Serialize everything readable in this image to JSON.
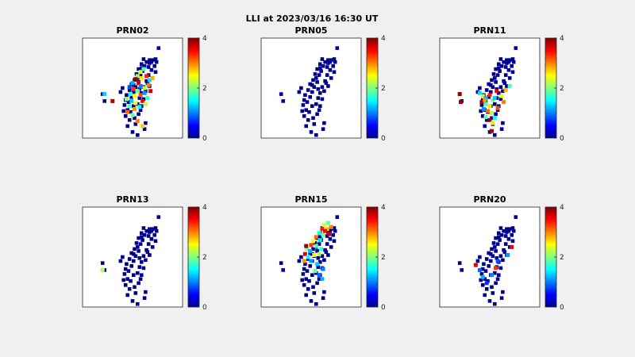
{
  "chart_data": {
    "type": "scatter",
    "title": "LLI at 2023/03/16 16:30 UT",
    "colorbar": {
      "colormap": "jet",
      "clim": [
        0,
        4
      ],
      "ticks": [
        "0",
        "2",
        "4"
      ]
    },
    "station_marker_color": "#00008f",
    "stations": [
      [
        0.76,
        0.1
      ],
      [
        0.73,
        0.21
      ],
      [
        0.67,
        0.22
      ],
      [
        0.61,
        0.21
      ],
      [
        0.64,
        0.24
      ],
      [
        0.69,
        0.24
      ],
      [
        0.74,
        0.24
      ],
      [
        0.59,
        0.26
      ],
      [
        0.62,
        0.28
      ],
      [
        0.72,
        0.28
      ],
      [
        0.66,
        0.29
      ],
      [
        0.69,
        0.32
      ],
      [
        0.56,
        0.31
      ],
      [
        0.6,
        0.33
      ],
      [
        0.54,
        0.36
      ],
      [
        0.58,
        0.37
      ],
      [
        0.66,
        0.37
      ],
      [
        0.73,
        0.34
      ],
      [
        0.7,
        0.4
      ],
      [
        0.64,
        0.43
      ],
      [
        0.52,
        0.42
      ],
      [
        0.56,
        0.44
      ],
      [
        0.49,
        0.46
      ],
      [
        0.53,
        0.49
      ],
      [
        0.61,
        0.49
      ],
      [
        0.67,
        0.48
      ],
      [
        0.47,
        0.52
      ],
      [
        0.51,
        0.54
      ],
      [
        0.59,
        0.55
      ],
      [
        0.63,
        0.53
      ],
      [
        0.44,
        0.57
      ],
      [
        0.49,
        0.59
      ],
      [
        0.57,
        0.6
      ],
      [
        0.61,
        0.61
      ],
      [
        0.43,
        0.62
      ],
      [
        0.46,
        0.64
      ],
      [
        0.55,
        0.66
      ],
      [
        0.42,
        0.67
      ],
      [
        0.51,
        0.68
      ],
      [
        0.59,
        0.68
      ],
      [
        0.45,
        0.72
      ],
      [
        0.48,
        0.74
      ],
      [
        0.56,
        0.76
      ],
      [
        0.43,
        0.78
      ],
      [
        0.47,
        0.82
      ],
      [
        0.53,
        0.86
      ],
      [
        0.45,
        0.88
      ],
      [
        0.63,
        0.85
      ],
      [
        0.62,
        0.91
      ],
      [
        0.5,
        0.94
      ],
      [
        0.55,
        0.97
      ],
      [
        0.4,
        0.5
      ],
      [
        0.38,
        0.54
      ],
      [
        0.2,
        0.56
      ],
      [
        0.22,
        0.63
      ],
      [
        0.67,
        0.25
      ],
      [
        0.59,
        0.3
      ],
      [
        0.7,
        0.22
      ],
      [
        0.55,
        0.4
      ],
      [
        0.51,
        0.47
      ],
      [
        0.57,
        0.51
      ],
      [
        0.65,
        0.45
      ],
      [
        0.41,
        0.73
      ],
      [
        0.52,
        0.8
      ],
      [
        0.58,
        0.72
      ]
    ],
    "panels": [
      {
        "name": "PRN02",
        "points": [
          [
            0.55,
            0.38,
            2.1
          ],
          [
            0.58,
            0.34,
            2.4
          ],
          [
            0.61,
            0.31,
            1.8
          ],
          [
            0.53,
            0.41,
            3.9
          ],
          [
            0.5,
            0.45,
            1.2
          ],
          [
            0.56,
            0.45,
            3.6
          ],
          [
            0.59,
            0.4,
            2.6
          ],
          [
            0.64,
            0.38,
            3.4
          ],
          [
            0.67,
            0.42,
            1.4
          ],
          [
            0.7,
            0.4,
            2.8
          ],
          [
            0.47,
            0.49,
            0.8
          ],
          [
            0.51,
            0.51,
            3.3
          ],
          [
            0.55,
            0.53,
            1.9
          ],
          [
            0.62,
            0.5,
            2.2
          ],
          [
            0.66,
            0.47,
            3.0
          ],
          [
            0.48,
            0.56,
            1.6
          ],
          [
            0.52,
            0.58,
            2.5
          ],
          [
            0.58,
            0.57,
            3.2
          ],
          [
            0.62,
            0.55,
            1.1
          ],
          [
            0.65,
            0.6,
            1.7
          ],
          [
            0.44,
            0.61,
            2.0
          ],
          [
            0.49,
            0.63,
            1.3
          ],
          [
            0.53,
            0.65,
            2.4
          ],
          [
            0.6,
            0.63,
            3.5
          ],
          [
            0.47,
            0.68,
            1.8
          ],
          [
            0.52,
            0.71,
            2.9
          ],
          [
            0.57,
            0.69,
            1.5
          ],
          [
            0.45,
            0.74,
            3.1
          ],
          [
            0.5,
            0.77,
            1.9
          ],
          [
            0.55,
            0.83,
            3.0
          ],
          [
            0.6,
            0.88,
            2.7
          ],
          [
            0.22,
            0.56,
            1.3
          ],
          [
            0.3,
            0.63,
            3.8
          ],
          [
            0.63,
            0.66,
            2.2
          ],
          [
            0.58,
            0.48,
            1.0
          ],
          [
            0.68,
            0.53,
            3.7
          ]
        ]
      },
      {
        "name": "PRN05",
        "points": []
      },
      {
        "name": "PRN11",
        "points": [
          [
            0.4,
            0.55,
            1.4
          ],
          [
            0.43,
            0.58,
            2.3
          ],
          [
            0.46,
            0.6,
            1.2
          ],
          [
            0.5,
            0.57,
            3.4
          ],
          [
            0.53,
            0.62,
            2.0
          ],
          [
            0.42,
            0.64,
            3.8
          ],
          [
            0.46,
            0.66,
            1.7
          ],
          [
            0.5,
            0.68,
            2.6
          ],
          [
            0.44,
            0.71,
            1.1
          ],
          [
            0.48,
            0.73,
            3.1
          ],
          [
            0.52,
            0.75,
            2.2
          ],
          [
            0.46,
            0.79,
            1.9
          ],
          [
            0.5,
            0.82,
            3.9
          ],
          [
            0.55,
            0.8,
            1.5
          ],
          [
            0.53,
            0.85,
            2.6
          ],
          [
            0.58,
            0.7,
            3.2
          ],
          [
            0.62,
            0.58,
            2.4
          ],
          [
            0.66,
            0.52,
            2.8
          ],
          [
            0.7,
            0.48,
            1.8
          ],
          [
            0.57,
            0.53,
            3.6
          ],
          [
            0.55,
            0.6,
            1.3
          ],
          [
            0.2,
            0.56,
            3.9
          ],
          [
            0.21,
            0.64,
            3.9
          ],
          [
            0.45,
            0.62,
            2.9
          ],
          [
            0.52,
            0.93,
            3.8
          ],
          [
            0.64,
            0.64,
            3.0
          ]
        ]
      },
      {
        "name": "PRN13",
        "points": [
          [
            0.2,
            0.63,
            2.2
          ]
        ]
      },
      {
        "name": "PRN15",
        "points": [
          [
            0.63,
            0.18,
            2.3
          ],
          [
            0.67,
            0.16,
            1.9
          ],
          [
            0.61,
            0.22,
            3.4
          ],
          [
            0.66,
            0.22,
            2.7
          ],
          [
            0.7,
            0.2,
            3.0
          ],
          [
            0.58,
            0.26,
            1.6
          ],
          [
            0.62,
            0.28,
            2.0
          ],
          [
            0.68,
            0.27,
            3.7
          ],
          [
            0.55,
            0.3,
            3.1
          ],
          [
            0.59,
            0.33,
            1.4
          ],
          [
            0.52,
            0.34,
            2.5
          ],
          [
            0.5,
            0.38,
            3.3
          ],
          [
            0.55,
            0.39,
            1.8
          ],
          [
            0.46,
            0.42,
            2.0
          ],
          [
            0.49,
            0.44,
            1.2
          ],
          [
            0.44,
            0.47,
            3.6
          ],
          [
            0.47,
            0.5,
            1.5
          ],
          [
            0.53,
            0.48,
            2.4
          ],
          [
            0.43,
            0.54,
            2.9
          ],
          [
            0.5,
            0.54,
            1.1
          ],
          [
            0.58,
            0.47,
            2.2
          ],
          [
            0.6,
            0.42,
            1.7
          ],
          [
            0.56,
            0.57,
            1.3
          ],
          [
            0.62,
            0.62,
            1.0
          ],
          [
            0.58,
            0.68,
            0.9
          ],
          [
            0.61,
            0.72,
            1.2
          ],
          [
            0.54,
            0.64,
            1.9
          ],
          [
            0.45,
            0.39,
            3.9
          ],
          [
            0.64,
            0.24,
            3.5
          ]
        ]
      },
      {
        "name": "PRN20",
        "points": [
          [
            0.36,
            0.58,
            3.6
          ],
          [
            0.4,
            0.63,
            0.9
          ],
          [
            0.43,
            0.7,
            1.2
          ],
          [
            0.52,
            0.68,
            1.0
          ],
          [
            0.56,
            0.61,
            3.3
          ],
          [
            0.68,
            0.48,
            1.1
          ],
          [
            0.72,
            0.4,
            3.5
          ],
          [
            0.47,
            0.76,
            0.7
          ],
          [
            0.58,
            0.54,
            0.8
          ]
        ]
      }
    ]
  }
}
